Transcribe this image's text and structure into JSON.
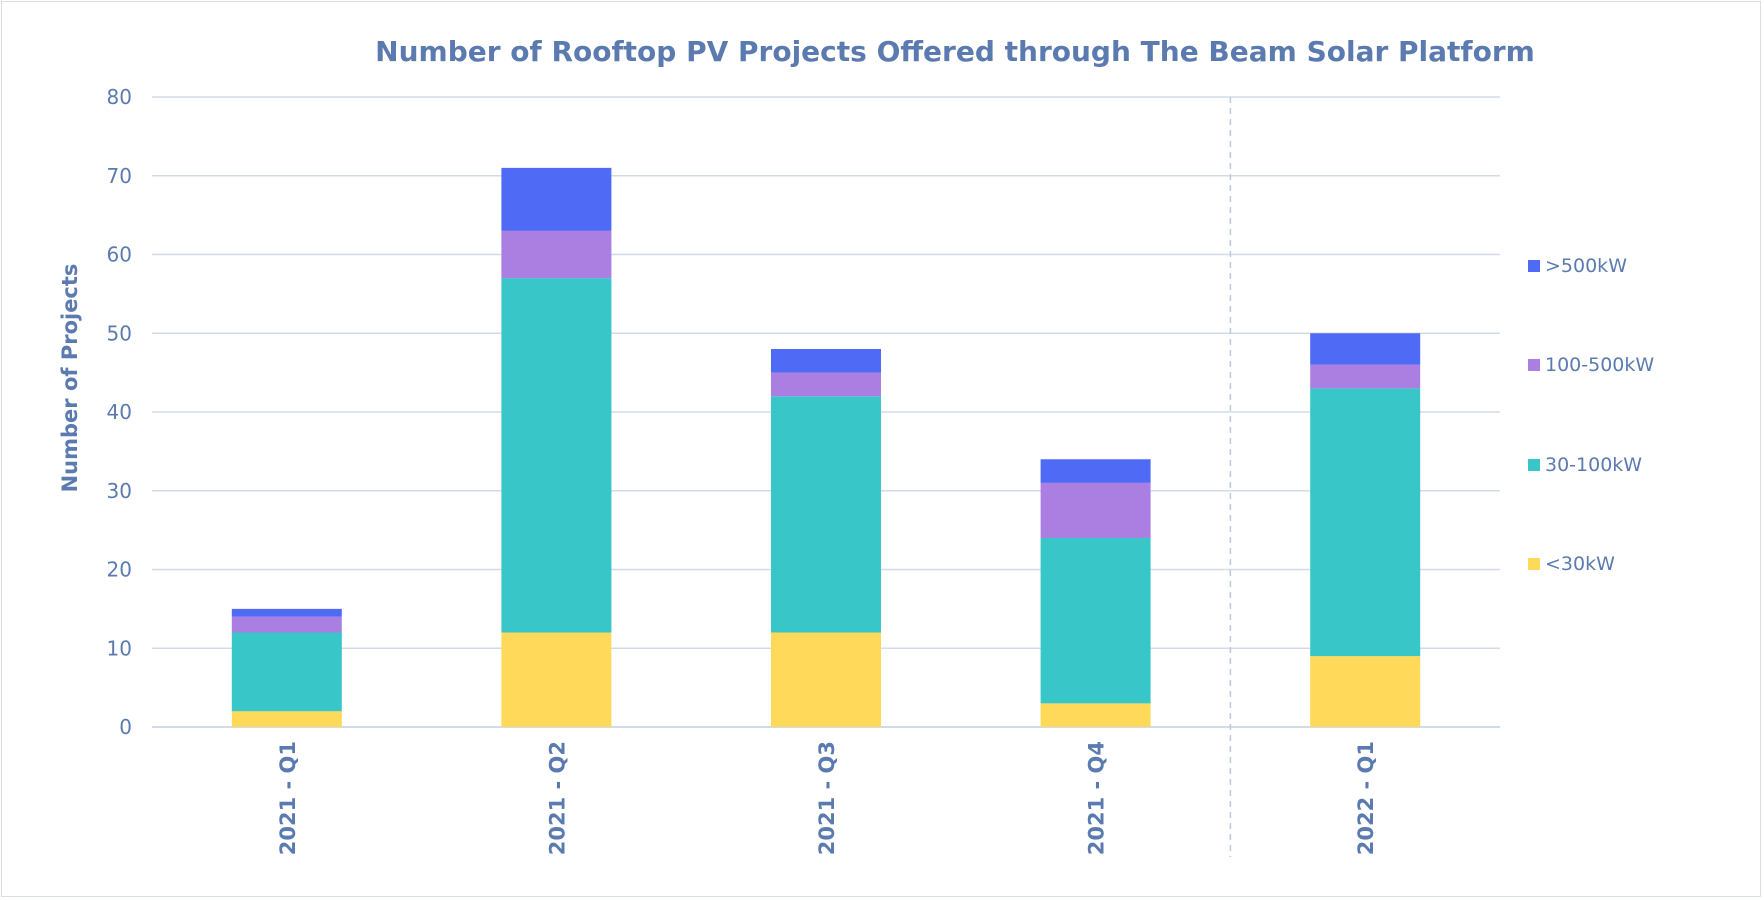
{
  "chart_data": {
    "type": "bar",
    "stacked": true,
    "title": "Number of Rooftop PV Projects Offered through The Beam Solar Platform",
    "xlabel": "",
    "ylabel": "Number of Projects",
    "categories": [
      "2021 - Q1",
      "2021 - Q2",
      "2021 - Q3",
      "2021 - Q4",
      "2022 - Q1"
    ],
    "series": [
      {
        "name": "<30kW",
        "color": "#ffd95a",
        "values": [
          2,
          12,
          12,
          3,
          9
        ]
      },
      {
        "name": "30-100kW",
        "color": "#38c6c9",
        "values": [
          10,
          45,
          30,
          21,
          34
        ]
      },
      {
        "name": "100-500kW",
        "color": "#ab7fe1",
        "values": [
          2,
          6,
          3,
          7,
          3
        ]
      },
      {
        "name": ">500kW",
        "color": "#4f6af5",
        "values": [
          1,
          8,
          3,
          3,
          4
        ]
      }
    ],
    "ylim": [
      0,
      80
    ],
    "yticks": [
      0,
      10,
      20,
      30,
      40,
      50,
      60,
      70,
      80
    ],
    "grid": true,
    "legend": "right",
    "separator_after_category": 3,
    "colors": {
      "text": "#5b7bb0",
      "grid": "#d3dbe8",
      "separator": "#bcc8dc"
    }
  }
}
